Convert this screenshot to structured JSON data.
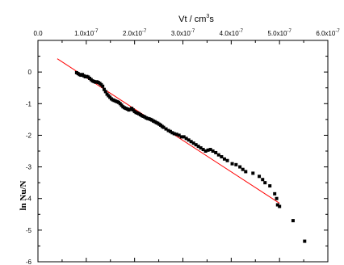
{
  "chart_data": {
    "type": "scatter",
    "title": "",
    "xlabel": {
      "text": "Vt / cm",
      "sup": "3",
      "suffix": "s"
    },
    "ylabel": "ln Nu/N",
    "xlim": [
      0.0,
      6e-07
    ],
    "ylim": [
      -6,
      1
    ],
    "x_axis_position": "top",
    "grid": false,
    "legend": "none",
    "x_ticks": [
      {
        "value": 0.0,
        "mant": "0.0",
        "exp": ""
      },
      {
        "value": 1e-07,
        "mant": "1.0x10",
        "exp": "-7"
      },
      {
        "value": 2e-07,
        "mant": "2.0x10",
        "exp": "-7"
      },
      {
        "value": 3e-07,
        "mant": "3.0x10",
        "exp": "-7"
      },
      {
        "value": 4e-07,
        "mant": "4.0x10",
        "exp": "-7"
      },
      {
        "value": 5e-07,
        "mant": "5.0x10",
        "exp": "-7"
      },
      {
        "value": 6e-07,
        "mant": "6.0x10",
        "exp": "-7"
      }
    ],
    "y_ticks": [
      0,
      -1,
      -2,
      -3,
      -4,
      -5,
      -6
    ],
    "series": [
      {
        "kind": "points",
        "color": "#000000",
        "x": [
          8e-08,
          8.3e-08,
          8.6e-08,
          8.9e-08,
          9.2e-08,
          9.5e-08,
          9.8e-08,
          1.01e-07,
          1.04e-07,
          1.07e-07,
          1.1e-07,
          1.13e-07,
          1.16e-07,
          1.19e-07,
          1.22e-07,
          1.25e-07,
          1.28e-07,
          1.31e-07,
          1.34e-07,
          1.37e-07,
          1.4e-07,
          1.43e-07,
          1.46e-07,
          1.49e-07,
          1.52e-07,
          1.55e-07,
          1.58e-07,
          1.61e-07,
          1.64e-07,
          1.67e-07,
          1.7e-07,
          1.73e-07,
          1.76e-07,
          1.79e-07,
          1.82e-07,
          1.85e-07,
          1.88e-07,
          1.91e-07,
          1.94e-07,
          1.97e-07,
          2e-07,
          2.03e-07,
          2.06e-07,
          2.09e-07,
          2.12e-07,
          2.15e-07,
          2.18e-07,
          2.21e-07,
          2.24e-07,
          2.27e-07,
          2.3e-07,
          2.33e-07,
          2.36e-07,
          2.39e-07,
          2.42e-07,
          2.45e-07,
          2.48e-07,
          2.51e-07,
          2.54e-07,
          2.57e-07,
          2.6e-07,
          2.65e-07,
          2.7e-07,
          2.74e-07,
          2.78e-07,
          2.82e-07,
          2.87e-07,
          2.92e-07,
          2.97e-07,
          3.02e-07,
          3.07e-07,
          3.12e-07,
          3.17e-07,
          3.22e-07,
          3.27e-07,
          3.32e-07,
          3.37e-07,
          3.42e-07,
          3.47e-07,
          3.52e-07,
          3.57e-07,
          3.62e-07,
          3.68e-07,
          3.74e-07,
          3.8e-07,
          3.86e-07,
          3.92e-07,
          4.02e-07,
          4.1e-07,
          4.18e-07,
          4.24e-07,
          4.3e-07,
          4.45e-07,
          4.58e-07,
          4.65e-07,
          4.7e-07,
          4.8e-07,
          4.9e-07,
          4.94e-07,
          4.96e-07,
          5e-07,
          5.28e-07,
          5.52e-07
        ],
        "y": [
          -0.02,
          -0.05,
          -0.08,
          -0.1,
          -0.08,
          -0.12,
          -0.15,
          -0.14,
          -0.16,
          -0.2,
          -0.24,
          -0.28,
          -0.3,
          -0.32,
          -0.31,
          -0.33,
          -0.36,
          -0.4,
          -0.45,
          -0.55,
          -0.62,
          -0.7,
          -0.75,
          -0.8,
          -0.85,
          -0.88,
          -0.9,
          -0.92,
          -0.94,
          -0.96,
          -1.0,
          -1.05,
          -1.1,
          -1.13,
          -1.15,
          -1.17,
          -1.2,
          -1.18,
          -1.15,
          -1.2,
          -1.25,
          -1.28,
          -1.3,
          -1.32,
          -1.35,
          -1.38,
          -1.4,
          -1.42,
          -1.45,
          -1.47,
          -1.48,
          -1.5,
          -1.52,
          -1.55,
          -1.57,
          -1.6,
          -1.62,
          -1.65,
          -1.68,
          -1.72,
          -1.75,
          -1.8,
          -1.85,
          -1.88,
          -1.92,
          -1.95,
          -1.97,
          -2.0,
          -2.05,
          -2.05,
          -2.1,
          -2.15,
          -2.2,
          -2.25,
          -2.3,
          -2.35,
          -2.4,
          -2.45,
          -2.5,
          -2.47,
          -2.45,
          -2.5,
          -2.55,
          -2.62,
          -2.68,
          -2.75,
          -2.8,
          -2.9,
          -2.93,
          -3.0,
          -3.08,
          -3.15,
          -3.2,
          -3.3,
          -3.4,
          -3.5,
          -3.6,
          -3.85,
          -4.0,
          -4.2,
          -4.25,
          -4.7,
          -5.35
        ]
      },
      {
        "kind": "line",
        "color": "#ff0000",
        "x": [
          4e-08,
          5e-07
        ],
        "y": [
          0.42,
          -4.15
        ]
      }
    ]
  }
}
